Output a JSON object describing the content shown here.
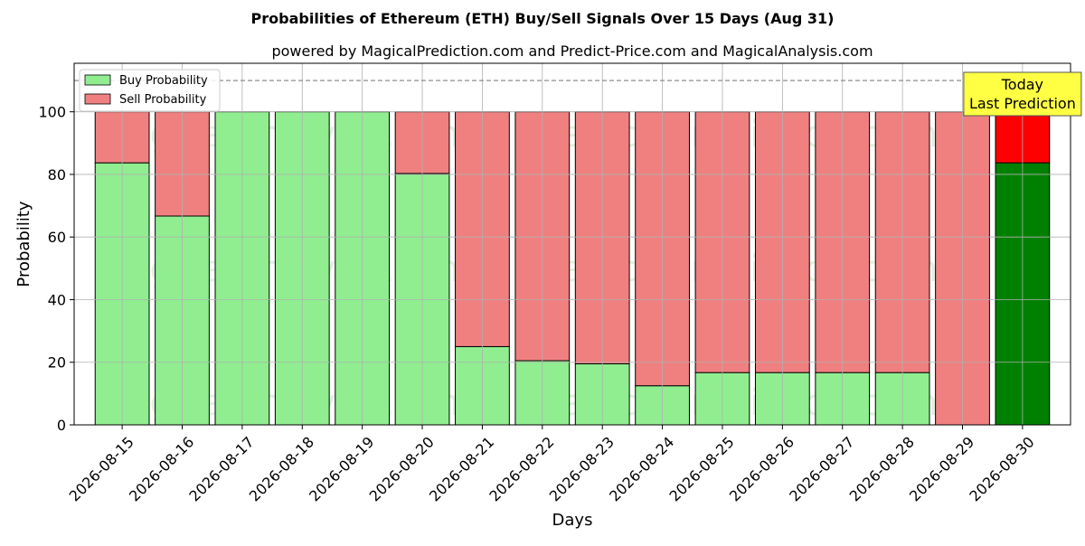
{
  "chart_data": {
    "type": "bar",
    "title": "Probabilities of Ethereum (ETH) Buy/Sell Signals Over 15 Days (Aug 31)",
    "subtitle": "powered by MagicalPrediction.com and Predict-Price.com and MagicalAnalysis.com",
    "xlabel": "Days",
    "ylabel": "Probability",
    "ylim": [
      0,
      115.5
    ],
    "yticks": [
      0,
      20,
      40,
      60,
      80,
      100
    ],
    "grid": true,
    "stacked": true,
    "reference_line": 110,
    "legend_position": "top-left",
    "categories": [
      "2026-08-15",
      "2026-08-16",
      "2026-08-17",
      "2026-08-18",
      "2026-08-19",
      "2026-08-20",
      "2026-08-21",
      "2026-08-22",
      "2026-08-23",
      "2026-08-24",
      "2026-08-25",
      "2026-08-26",
      "2026-08-27",
      "2026-08-28",
      "2026-08-29",
      "2026-08-30"
    ],
    "series": [
      {
        "name": "Buy Probability",
        "color": "#90ee90",
        "values": [
          83.7,
          66.7,
          100,
          100,
          100,
          80.3,
          25.0,
          20.5,
          19.5,
          12.5,
          16.7,
          16.7,
          16.7,
          16.7,
          0,
          83.7
        ]
      },
      {
        "name": "Sell Probability",
        "color": "#f08080",
        "values": [
          16.3,
          33.3,
          0,
          0,
          0,
          19.7,
          75.0,
          79.5,
          80.5,
          87.5,
          83.3,
          83.3,
          83.3,
          83.3,
          100,
          16.3
        ]
      }
    ],
    "highlight": {
      "index": 15,
      "buy_color": "#008000",
      "sell_color": "#ff0000"
    },
    "annotation": {
      "lines": [
        "Today",
        "Last Prediction"
      ],
      "color": "#ffff44"
    },
    "watermark": {
      "texts": [
        "MagicalAnalysis.com",
        "MagicalPrediction.com"
      ],
      "color": "rgba(120,180,120,0.22)"
    }
  }
}
